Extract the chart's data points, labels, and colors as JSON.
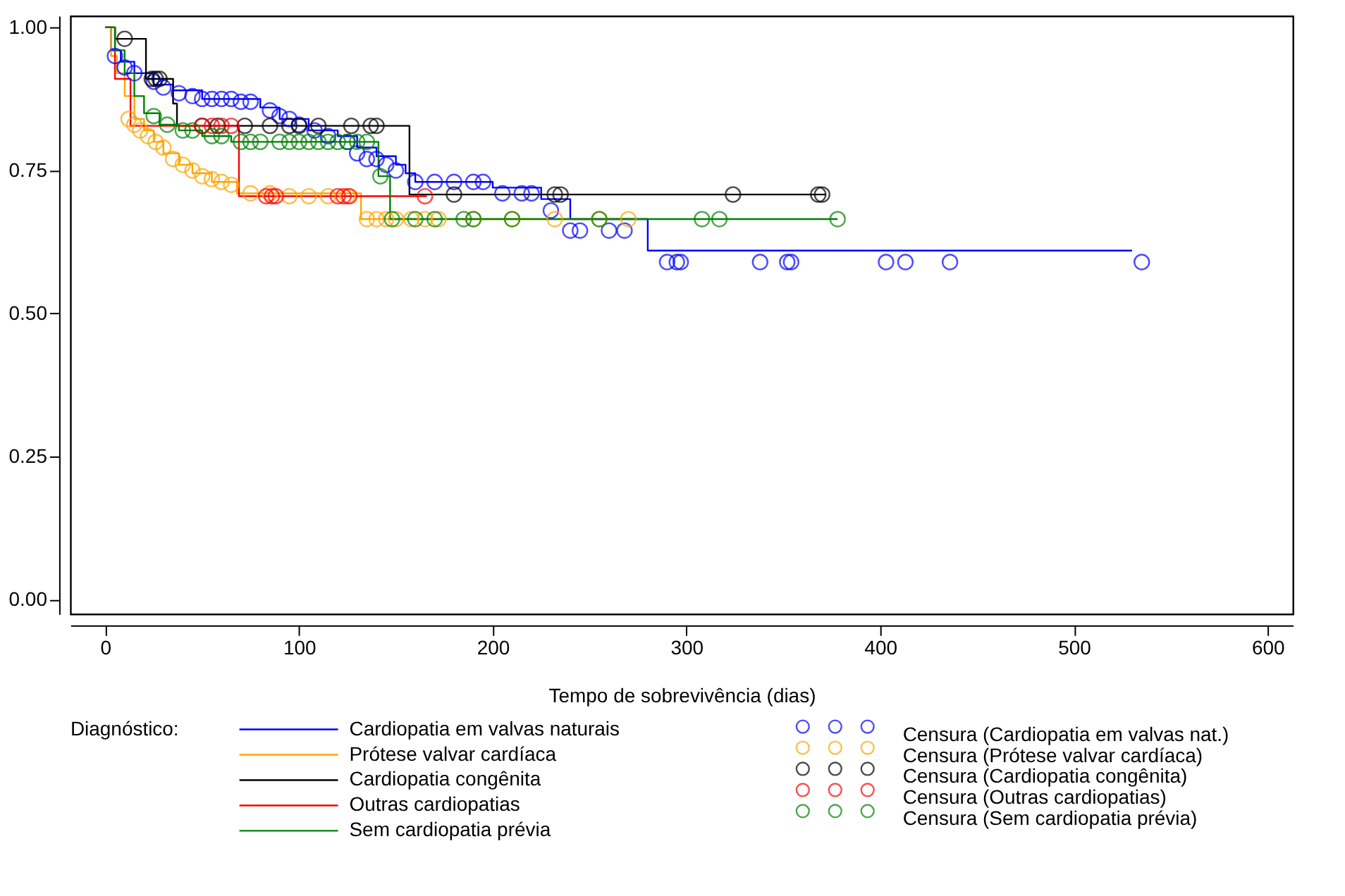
{
  "chart_data": {
    "type": "step",
    "xlabel": "Tempo de sobrevivência (dias)",
    "legend_title": "Diagnóstico:",
    "legend": "bottom",
    "grid": false,
    "xlim": [
      -18,
      613
    ],
    "ylim": [
      -0.025,
      1.02
    ],
    "xticks": [
      0,
      100,
      200,
      300,
      400,
      500,
      600
    ],
    "yticks": [
      {
        "value": 0,
        "label": "0.00"
      },
      {
        "value": 0.25,
        "label": "0.25"
      },
      {
        "value": 0.5,
        "label": "0.50"
      },
      {
        "value": 0.75,
        "label": "0.75"
      },
      {
        "value": 1,
        "label": "1.00"
      }
    ],
    "series": [
      {
        "name": "Cardiopatia em valvas naturais",
        "color": "#0000ff",
        "marker": "none",
        "line_style": "solid",
        "x": [
          0,
          3,
          8,
          15,
          25,
          35,
          50,
          80,
          90,
          105,
          120,
          130,
          140,
          150,
          155,
          160,
          200,
          225,
          240,
          280,
          530
        ],
        "values": [
          1.0,
          0.96,
          0.94,
          0.92,
          0.9,
          0.89,
          0.875,
          0.86,
          0.84,
          0.82,
          0.81,
          0.79,
          0.775,
          0.76,
          0.745,
          0.73,
          0.72,
          0.7,
          0.665,
          0.61,
          0.61
        ]
      },
      {
        "name": "Prótese valvar cardíaca",
        "color": "#ffa500",
        "marker": "none",
        "line_style": "solid",
        "x": [
          0,
          3,
          6,
          10,
          15,
          20,
          25,
          30,
          38,
          45,
          55,
          68,
          132,
          272
        ],
        "values": [
          1.0,
          0.95,
          0.92,
          0.88,
          0.84,
          0.82,
          0.8,
          0.78,
          0.76,
          0.745,
          0.73,
          0.71,
          0.665,
          0.665
        ]
      },
      {
        "name": "Cardiopatia congênita",
        "color": "#000000",
        "marker": "none",
        "line_style": "solid",
        "x": [
          0,
          5,
          21,
          35,
          37,
          157,
          372
        ],
        "values": [
          1.0,
          0.98,
          0.91,
          0.867,
          0.828,
          0.708,
          0.708
        ]
      },
      {
        "name": "Outras cardiopatias",
        "color": "#ff0000",
        "marker": "none",
        "line_style": "solid",
        "x": [
          0,
          5,
          13,
          69,
          166
        ],
        "values": [
          1.0,
          0.91,
          0.828,
          0.705,
          0.705
        ]
      },
      {
        "name": "Sem cardiopatia prévia",
        "color": "#008000",
        "marker": "none",
        "line_style": "solid",
        "x": [
          0,
          5,
          10,
          15,
          20,
          28,
          38,
          50,
          65,
          141,
          147,
          378
        ],
        "values": [
          1.0,
          0.96,
          0.92,
          0.88,
          0.85,
          0.83,
          0.82,
          0.81,
          0.8,
          0.74,
          0.665,
          0.665
        ]
      },
      {
        "name": "Censura (Cardiopatia em valvas nat.)",
        "type": "scatter",
        "color": "#0000ff",
        "marker": "circle",
        "x": [
          5,
          10,
          15,
          25,
          30,
          38,
          45,
          50,
          55,
          60,
          65,
          70,
          75,
          85,
          90,
          95,
          100,
          108,
          115,
          125,
          130,
          135,
          140,
          145,
          150,
          160,
          170,
          180,
          190,
          195,
          205,
          215,
          220,
          230,
          240,
          245,
          260,
          268,
          290,
          295,
          297,
          338,
          352,
          354,
          403,
          413,
          436,
          535
        ],
        "values": [
          0.95,
          0.93,
          0.92,
          0.905,
          0.895,
          0.885,
          0.88,
          0.875,
          0.875,
          0.875,
          0.875,
          0.87,
          0.87,
          0.855,
          0.845,
          0.84,
          0.83,
          0.82,
          0.81,
          0.8,
          0.78,
          0.77,
          0.77,
          0.76,
          0.75,
          0.73,
          0.73,
          0.73,
          0.73,
          0.73,
          0.71,
          0.71,
          0.71,
          0.68,
          0.645,
          0.645,
          0.645,
          0.645,
          0.59,
          0.59,
          0.59,
          0.59,
          0.59,
          0.59,
          0.59,
          0.59,
          0.59,
          0.59
        ]
      },
      {
        "name": "Censura (Prótese valvar cardíaca)",
        "type": "scatter",
        "color": "#ffa500",
        "marker": "circle",
        "x": [
          12,
          15,
          18,
          22,
          26,
          30,
          35,
          40,
          45,
          50,
          55,
          60,
          65,
          75,
          85,
          95,
          105,
          115,
          125,
          135,
          140,
          145,
          150,
          158,
          165,
          172,
          190,
          210,
          232,
          255,
          270
        ],
        "values": [
          0.84,
          0.83,
          0.82,
          0.81,
          0.8,
          0.79,
          0.77,
          0.76,
          0.75,
          0.74,
          0.735,
          0.73,
          0.725,
          0.71,
          0.71,
          0.705,
          0.705,
          0.705,
          0.705,
          0.665,
          0.665,
          0.665,
          0.665,
          0.665,
          0.665,
          0.665,
          0.665,
          0.665,
          0.665,
          0.665,
          0.665
        ]
      },
      {
        "name": "Censura (Cardiopatia congênita)",
        "type": "scatter",
        "color": "#000000",
        "marker": "circle",
        "x": [
          10,
          24,
          26,
          28,
          50,
          58,
          72,
          85,
          95,
          100,
          110,
          127,
          137,
          140,
          180,
          232,
          235,
          324,
          368,
          370
        ],
        "values": [
          0.98,
          0.91,
          0.91,
          0.91,
          0.828,
          0.828,
          0.828,
          0.828,
          0.828,
          0.828,
          0.828,
          0.828,
          0.828,
          0.828,
          0.708,
          0.708,
          0.708,
          0.708,
          0.708,
          0.708
        ]
      },
      {
        "name": "Censura (Outras cardiopatias)",
        "type": "scatter",
        "color": "#ff0000",
        "marker": "circle",
        "x": [
          50,
          55,
          60,
          65,
          83,
          86,
          88,
          120,
          123,
          126,
          165
        ],
        "values": [
          0.828,
          0.828,
          0.828,
          0.828,
          0.705,
          0.705,
          0.705,
          0.705,
          0.705,
          0.705,
          0.705
        ]
      },
      {
        "name": "Censura (Sem cardiopatia prévia)",
        "type": "scatter",
        "color": "#008000",
        "marker": "circle",
        "x": [
          25,
          32,
          40,
          45,
          55,
          60,
          70,
          75,
          80,
          90,
          95,
          100,
          105,
          110,
          115,
          120,
          125,
          130,
          135,
          142,
          148,
          160,
          170,
          185,
          190,
          210,
          255,
          308,
          317,
          378
        ],
        "values": [
          0.845,
          0.83,
          0.82,
          0.82,
          0.81,
          0.81,
          0.8,
          0.8,
          0.8,
          0.8,
          0.8,
          0.8,
          0.8,
          0.8,
          0.8,
          0.8,
          0.8,
          0.8,
          0.8,
          0.74,
          0.665,
          0.665,
          0.665,
          0.665,
          0.665,
          0.665,
          0.665,
          0.665,
          0.665,
          0.665
        ]
      }
    ]
  }
}
